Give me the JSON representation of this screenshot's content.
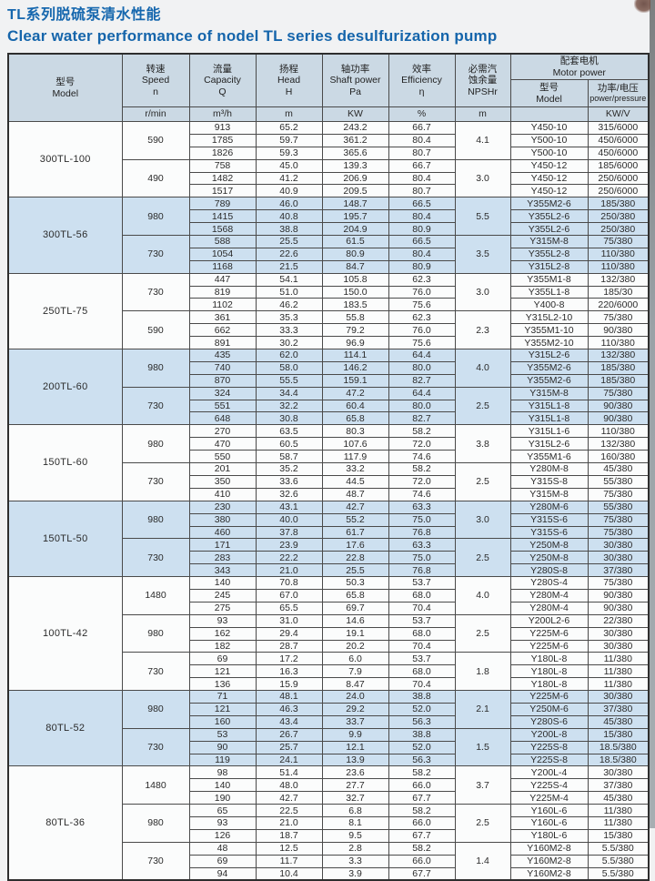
{
  "title_zh": "TL系列脱硫泵清水性能",
  "title_en": "Clear water performance of nodel TL series desulfurization pump",
  "colors": {
    "title_blue": "#1565ab",
    "header_bg": "#cbd9e4",
    "shaded_row_bg": "#cde0f0",
    "plain_row_bg": "#fbfcfc",
    "border": "#4a4a4a"
  },
  "table": {
    "headers": {
      "model": {
        "zh": "型号",
        "en": "Model"
      },
      "speed": {
        "zh": "转速",
        "en": "Speed",
        "sym": "n"
      },
      "capacity": {
        "zh": "流量",
        "en": "Capacity",
        "sym": "Q"
      },
      "head": {
        "zh": "扬程",
        "en": "Head",
        "sym": "H"
      },
      "shaft_power": {
        "zh": "轴功率",
        "en": "Shaft power",
        "sym": "Pa"
      },
      "efficiency": {
        "zh": "效率",
        "en": "Efficiency",
        "sym": "η"
      },
      "npshr": {
        "zh": "必需汽\n蚀余量",
        "en": "NPSHr"
      },
      "motor_group": {
        "zh": "配套电机",
        "en": "Motor power"
      },
      "motor_model": {
        "zh": "型号",
        "en": "Model"
      },
      "motor_power": {
        "zh": "功率/电压",
        "en": "power/pressure"
      }
    },
    "units": {
      "speed": "r/min",
      "capacity": "m³/h",
      "head": "m",
      "shaft_power": "KW",
      "efficiency": "%",
      "npshr": "m",
      "motor_model": "",
      "motor_power": "KW/V"
    },
    "blocks": [
      {
        "model": "300TL-100",
        "shaded": false,
        "groups": [
          {
            "speed": "590",
            "npshr": "4.1",
            "rows": [
              [
                "913",
                "65.2",
                "243.2",
                "66.7",
                "Y450-10",
                "315/6000"
              ],
              [
                "1785",
                "59.7",
                "361.2",
                "80.4",
                "Y500-10",
                "450/6000"
              ],
              [
                "1826",
                "59.3",
                "365.6",
                "80.7",
                "Y500-10",
                "450/6000"
              ]
            ]
          },
          {
            "speed": "490",
            "npshr": "3.0",
            "rows": [
              [
                "758",
                "45.0",
                "139.3",
                "66.7",
                "Y450-12",
                "185/6000"
              ],
              [
                "1482",
                "41.2",
                "206.9",
                "80.4",
                "Y450-12",
                "250/6000"
              ],
              [
                "1517",
                "40.9",
                "209.5",
                "80.7",
                "Y450-12",
                "250/6000"
              ]
            ]
          }
        ]
      },
      {
        "model": "300TL-56",
        "shaded": true,
        "groups": [
          {
            "speed": "980",
            "npshr": "5.5",
            "rows": [
              [
                "789",
                "46.0",
                "148.7",
                "66.5",
                "Y355M2-6",
                "185/380"
              ],
              [
                "1415",
                "40.8",
                "195.7",
                "80.4",
                "Y355L2-6",
                "250/380"
              ],
              [
                "1568",
                "38.8",
                "204.9",
                "80.9",
                "Y355L2-6",
                "250/380"
              ]
            ]
          },
          {
            "speed": "730",
            "npshr": "3.5",
            "rows": [
              [
                "588",
                "25.5",
                "61.5",
                "66.5",
                "Y315M-8",
                "75/380"
              ],
              [
                "1054",
                "22.6",
                "80.9",
                "80.4",
                "Y355L2-8",
                "110/380"
              ],
              [
                "1168",
                "21.5",
                "84.7",
                "80.9",
                "Y315L2-8",
                "110/380"
              ]
            ]
          }
        ]
      },
      {
        "model": "250TL-75",
        "shaded": false,
        "groups": [
          {
            "speed": "730",
            "npshr": "3.0",
            "rows": [
              [
                "447",
                "54.1",
                "105.8",
                "62.3",
                "Y355M1-8",
                "132/380"
              ],
              [
                "819",
                "51.0",
                "150.0",
                "76.0",
                "Y355L1-8",
                "185/30"
              ],
              [
                "1102",
                "46.2",
                "183.5",
                "75.6",
                "Y400-8",
                "220/6000"
              ]
            ]
          },
          {
            "speed": "590",
            "npshr": "2.3",
            "rows": [
              [
                "361",
                "35.3",
                "55.8",
                "62.3",
                "Y315L2-10",
                "75/380"
              ],
              [
                "662",
                "33.3",
                "79.2",
                "76.0",
                "Y355M1-10",
                "90/380"
              ],
              [
                "891",
                "30.2",
                "96.9",
                "75.6",
                "Y355M2-10",
                "110/380"
              ]
            ]
          }
        ]
      },
      {
        "model": "200TL-60",
        "shaded": true,
        "groups": [
          {
            "speed": "980",
            "npshr": "4.0",
            "rows": [
              [
                "435",
                "62.0",
                "114.1",
                "64.4",
                "Y315L2-6",
                "132/380"
              ],
              [
                "740",
                "58.0",
                "146.2",
                "80.0",
                "Y355M2-6",
                "185/380"
              ],
              [
                "870",
                "55.5",
                "159.1",
                "82.7",
                "Y355M2-6",
                "185/380"
              ]
            ]
          },
          {
            "speed": "730",
            "npshr": "2.5",
            "rows": [
              [
                "324",
                "34.4",
                "47.2",
                "64.4",
                "Y315M-8",
                "75/380"
              ],
              [
                "551",
                "32.2",
                "60.4",
                "80.0",
                "Y315L1-8",
                "90/380"
              ],
              [
                "648",
                "30.8",
                "65.8",
                "82.7",
                "Y315L1-8",
                "90/380"
              ]
            ]
          }
        ]
      },
      {
        "model": "150TL-60",
        "shaded": false,
        "groups": [
          {
            "speed": "980",
            "npshr": "3.8",
            "rows": [
              [
                "270",
                "63.5",
                "80.3",
                "58.2",
                "Y315L1-6",
                "110/380"
              ],
              [
                "470",
                "60.5",
                "107.6",
                "72.0",
                "Y315L2-6",
                "132/380"
              ],
              [
                "550",
                "58.7",
                "117.9",
                "74.6",
                "Y355M1-6",
                "160/380"
              ]
            ]
          },
          {
            "speed": "730",
            "npshr": "2.5",
            "rows": [
              [
                "201",
                "35.2",
                "33.2",
                "58.2",
                "Y280M-8",
                "45/380"
              ],
              [
                "350",
                "33.6",
                "44.5",
                "72.0",
                "Y315S-8",
                "55/380"
              ],
              [
                "410",
                "32.6",
                "48.7",
                "74.6",
                "Y315M-8",
                "75/380"
              ]
            ]
          }
        ]
      },
      {
        "model": "150TL-50",
        "shaded": true,
        "groups": [
          {
            "speed": "980",
            "npshr": "3.0",
            "rows": [
              [
                "230",
                "43.1",
                "42.7",
                "63.3",
                "Y280M-6",
                "55/380"
              ],
              [
                "380",
                "40.0",
                "55.2",
                "75.0",
                "Y315S-6",
                "75/380"
              ],
              [
                "460",
                "37.8",
                "61.7",
                "76.8",
                "Y315S-6",
                "75/380"
              ]
            ]
          },
          {
            "speed": "730",
            "npshr": "2.5",
            "rows": [
              [
                "171",
                "23.9",
                "17.6",
                "63.3",
                "Y250M-8",
                "30/380"
              ],
              [
                "283",
                "22.2",
                "22.8",
                "75.0",
                "Y250M-8",
                "30/380"
              ],
              [
                "343",
                "21.0",
                "25.5",
                "76.8",
                "Y280S-8",
                "37/380"
              ]
            ]
          }
        ]
      },
      {
        "model": "100TL-42",
        "shaded": false,
        "groups": [
          {
            "speed": "1480",
            "npshr": "4.0",
            "rows": [
              [
                "140",
                "70.8",
                "50.3",
                "53.7",
                "Y280S-4",
                "75/380"
              ],
              [
                "245",
                "67.0",
                "65.8",
                "68.0",
                "Y280M-4",
                "90/380"
              ],
              [
                "275",
                "65.5",
                "69.7",
                "70.4",
                "Y280M-4",
                "90/380"
              ]
            ]
          },
          {
            "speed": "980",
            "npshr": "2.5",
            "rows": [
              [
                "93",
                "31.0",
                "14.6",
                "53.7",
                "Y200L2-6",
                "22/380"
              ],
              [
                "162",
                "29.4",
                "19.1",
                "68.0",
                "Y225M-6",
                "30/380"
              ],
              [
                "182",
                "28.7",
                "20.2",
                "70.4",
                "Y225M-6",
                "30/380"
              ]
            ]
          },
          {
            "speed": "730",
            "npshr": "1.8",
            "rows": [
              [
                "69",
                "17.2",
                "6.0",
                "53.7",
                "Y180L-8",
                "11/380"
              ],
              [
                "121",
                "16.3",
                "7.9",
                "68.0",
                "Y180L-8",
                "11/380"
              ],
              [
                "136",
                "15.9",
                "8.47",
                "70.4",
                "Y180L-8",
                "11/380"
              ]
            ]
          }
        ]
      },
      {
        "model": "80TL-52",
        "shaded": true,
        "groups": [
          {
            "speed": "980",
            "npshr": "2.1",
            "rows": [
              [
                "71",
                "48.1",
                "24.0",
                "38.8",
                "Y225M-6",
                "30/380"
              ],
              [
                "121",
                "46.3",
                "29.2",
                "52.0",
                "Y250M-6",
                "37/380"
              ],
              [
                "160",
                "43.4",
                "33.7",
                "56.3",
                "Y280S-6",
                "45/380"
              ]
            ]
          },
          {
            "speed": "730",
            "npshr": "1.5",
            "rows": [
              [
                "53",
                "26.7",
                "9.9",
                "38.8",
                "Y200L-8",
                "15/380"
              ],
              [
                "90",
                "25.7",
                "12.1",
                "52.0",
                "Y225S-8",
                "18.5/380"
              ],
              [
                "119",
                "24.1",
                "13.9",
                "56.3",
                "Y225S-8",
                "18.5/380"
              ]
            ]
          }
        ]
      },
      {
        "model": "80TL-36",
        "shaded": false,
        "groups": [
          {
            "speed": "1480",
            "npshr": "3.7",
            "rows": [
              [
                "98",
                "51.4",
                "23.6",
                "58.2",
                "Y200L-4",
                "30/380"
              ],
              [
                "140",
                "48.0",
                "27.7",
                "66.0",
                "Y225S-4",
                "37/380"
              ],
              [
                "190",
                "42.7",
                "32.7",
                "67.7",
                "Y225M-4",
                "45/380"
              ]
            ]
          },
          {
            "speed": "980",
            "npshr": "2.5",
            "rows": [
              [
                "65",
                "22.5",
                "6.8",
                "58.2",
                "Y160L-6",
                "11/380"
              ],
              [
                "93",
                "21.0",
                "8.1",
                "66.0",
                "Y160L-6",
                "11/380"
              ],
              [
                "126",
                "18.7",
                "9.5",
                "67.7",
                "Y180L-6",
                "15/380"
              ]
            ]
          },
          {
            "speed": "730",
            "npshr": "1.4",
            "rows": [
              [
                "48",
                "12.5",
                "2.8",
                "58.2",
                "Y160M2-8",
                "5.5/380"
              ],
              [
                "69",
                "11.7",
                "3.3",
                "66.0",
                "Y160M2-8",
                "5.5/380"
              ],
              [
                "94",
                "10.4",
                "3.9",
                "67.7",
                "Y160M2-8",
                "5.5/380"
              ]
            ]
          }
        ]
      }
    ]
  }
}
